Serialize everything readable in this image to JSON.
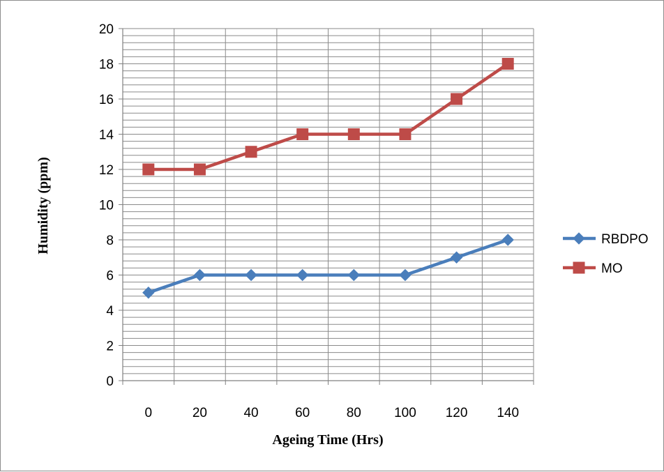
{
  "chart_data": {
    "type": "line",
    "title": "",
    "xlabel": "Ageing Time (Hrs)",
    "ylabel": "Humidity (ppm)",
    "categories": [
      "0",
      "20",
      "40",
      "60",
      "80",
      "100",
      "120",
      "140"
    ],
    "ylim": [
      0,
      20
    ],
    "y_ticks": [
      "0",
      "2",
      "4",
      "6",
      "8",
      "10",
      "12",
      "14",
      "16",
      "18",
      "20"
    ],
    "y_major_step": 2,
    "y_minor_step": 0.4,
    "grid": true,
    "legend_position": "right",
    "series": [
      {
        "name": "RBDPO",
        "values": [
          5,
          6,
          6,
          6,
          6,
          6,
          7,
          8
        ],
        "color": "#4a7ebb",
        "marker": "diamond"
      },
      {
        "name": "MO",
        "values": [
          12,
          12,
          13,
          14,
          14,
          14,
          16,
          18
        ],
        "color": "#be4b48",
        "marker": "square"
      }
    ]
  }
}
